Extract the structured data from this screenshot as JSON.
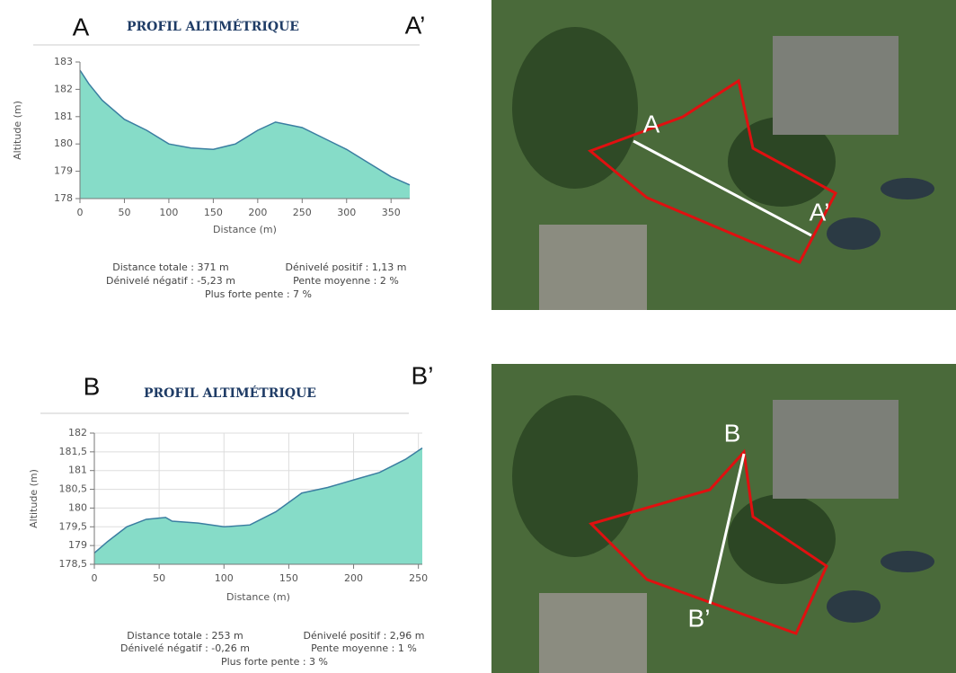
{
  "chart_data": [
    {
      "type": "area",
      "title": "PROFIL ALTIMÉTRIQUE",
      "start_label": "A",
      "end_label": "A’",
      "x_label": "Distance (m)",
      "y_label": "Altitude (m)",
      "x": [
        0,
        10,
        25,
        50,
        75,
        100,
        125,
        150,
        175,
        200,
        220,
        250,
        275,
        300,
        325,
        350,
        371
      ],
      "values": [
        182.7,
        182.2,
        181.6,
        180.9,
        180.5,
        180.0,
        179.85,
        179.8,
        180.0,
        180.5,
        180.8,
        180.6,
        180.2,
        179.8,
        179.3,
        178.8,
        178.5
      ],
      "color": "#86dcc8",
      "line_color": "#3b7ea1",
      "xlim": [
        0,
        371
      ],
      "xticks": [
        0,
        50,
        100,
        150,
        200,
        250,
        300,
        350
      ],
      "ylim": [
        178,
        183
      ],
      "yticks": [
        178,
        179,
        180,
        181,
        182,
        183
      ],
      "grid": false,
      "annotations": [
        "Distance totale : 371 m",
        "Dénivelé positif : 1,13 m",
        "Dénivelé négatif : -5,23 m",
        "Pente moyenne : 2 %",
        "Plus forte pente : 7 %"
      ],
      "map_labels": [
        "A",
        "A’"
      ]
    },
    {
      "type": "area",
      "title": "PROFIL ALTIMÉTRIQUE",
      "start_label": "B",
      "end_label": "B’",
      "x_label": "Distance (m)",
      "y_label": "Altitude (m)",
      "x": [
        0,
        10,
        25,
        40,
        55,
        60,
        80,
        100,
        120,
        140,
        160,
        180,
        200,
        220,
        240,
        253
      ],
      "values": [
        178.8,
        179.1,
        179.5,
        179.7,
        179.75,
        179.65,
        179.6,
        179.5,
        179.55,
        179.9,
        180.4,
        180.55,
        180.75,
        180.95,
        181.3,
        181.6
      ],
      "color": "#86dcc8",
      "line_color": "#3b7ea1",
      "xlim": [
        0,
        253
      ],
      "xticks": [
        0,
        50,
        100,
        150,
        200,
        250
      ],
      "ylim": [
        178.5,
        182
      ],
      "yticks": [
        {
          "value": 178.5,
          "label": "178,5"
        },
        179,
        {
          "value": 179.5,
          "label": "179,5"
        },
        180,
        {
          "value": 180.5,
          "label": "180,5"
        },
        181,
        {
          "value": 181.5,
          "label": "181,5"
        },
        182
      ],
      "grid": true,
      "annotations": [
        "Distance totale : 253 m",
        "Dénivelé positif : 2,96 m",
        "Dénivelé négatif : -0,26 m",
        "Pente moyenne : 1 %",
        "Plus forte pente : 3 %"
      ],
      "map_labels": [
        "B",
        "B’"
      ]
    }
  ]
}
